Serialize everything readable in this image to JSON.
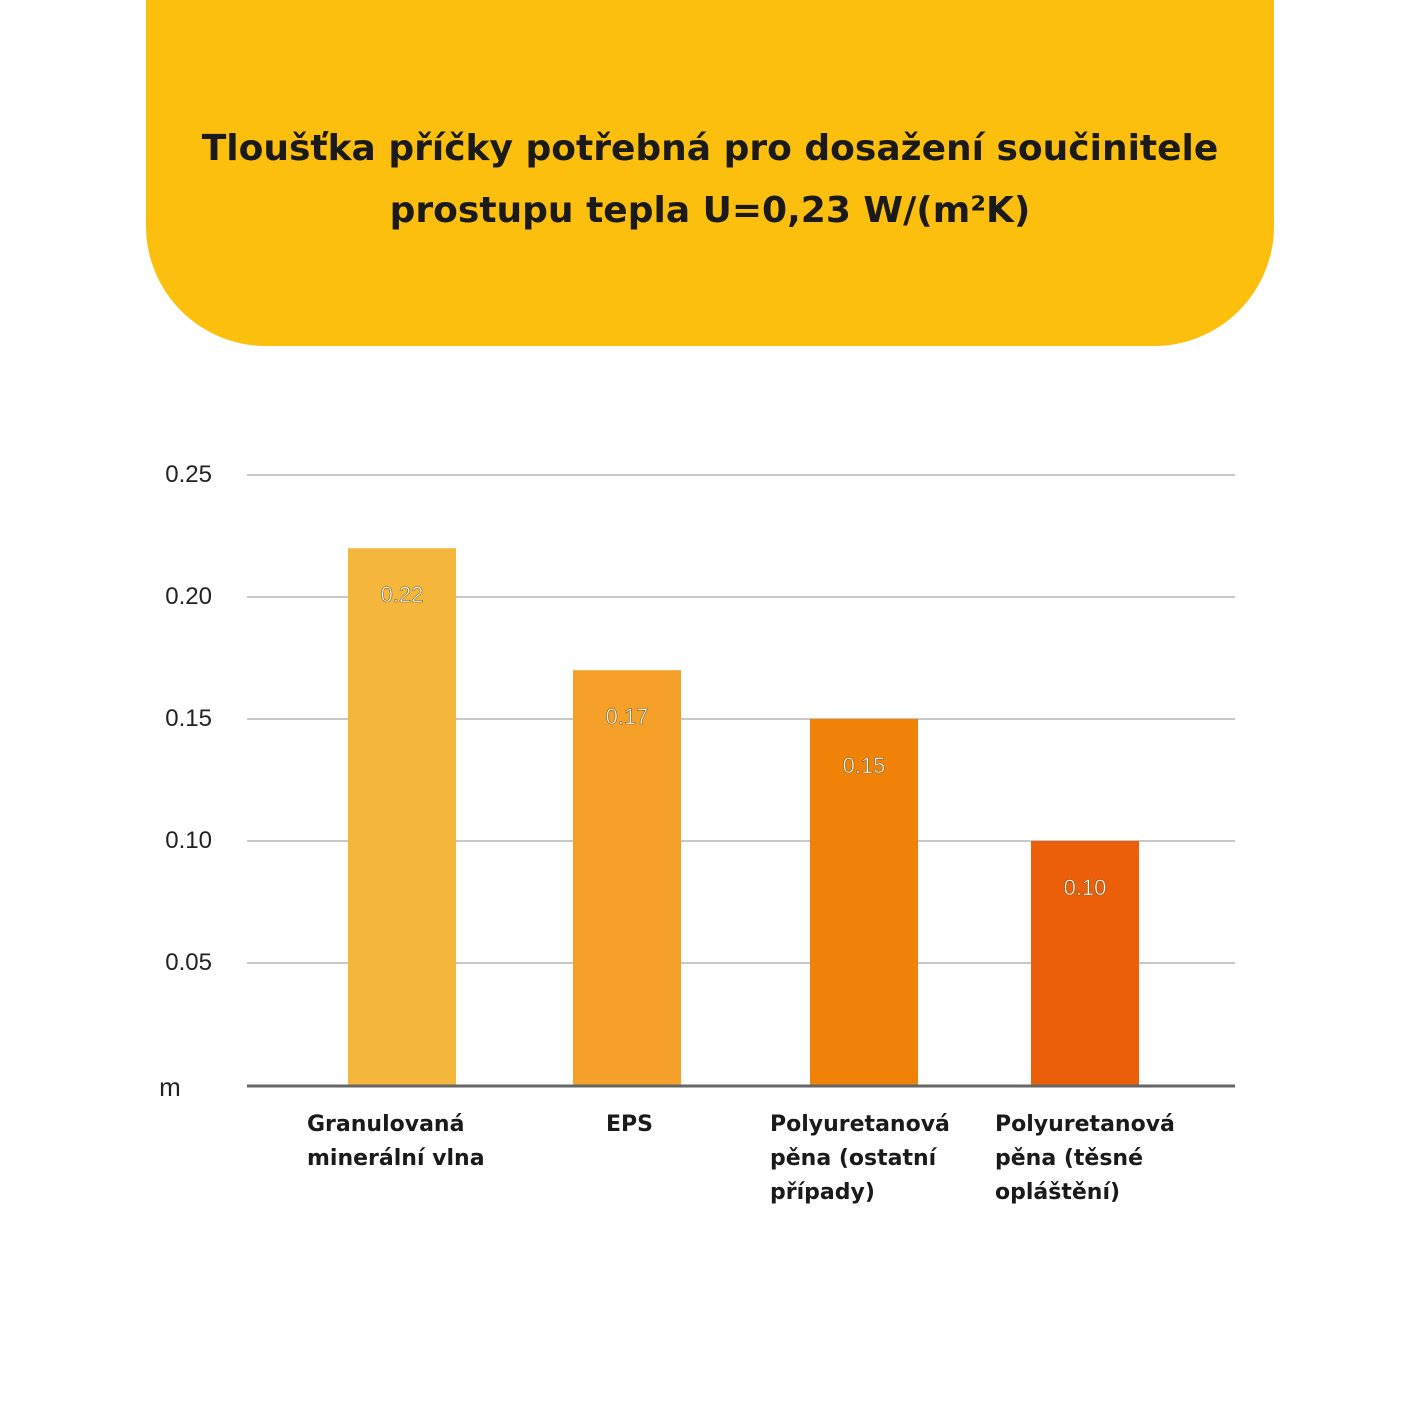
{
  "header": {
    "title_line1": "Tloušťka příčky potřebná pro dosažení součinitele",
    "title_line2": "prostupu tepla U=0,23 W/(m²K)"
  },
  "chart_data": {
    "type": "bar",
    "title": "Tloušťka příčky potřebná pro dosažení součinitele prostupu tepla U=0,23 W/(m²K)",
    "categories": [
      "Granulovaná\nminerální vlna",
      "EPS",
      "Polyuretanová\npěna (ostatní\npřípady)",
      "Polyuretanová\npěna (těsné\nopláštění)"
    ],
    "values": [
      0.22,
      0.17,
      0.15,
      0.1
    ],
    "value_labels": [
      "0.22",
      "0.17",
      "0.15",
      "0.10"
    ],
    "colors": [
      "#f5b73b",
      "#f5a028",
      "#f08307",
      "#eb5f0b"
    ],
    "ylabel": "m",
    "ylim": [
      0,
      0.25
    ],
    "yticks": [
      "0.05",
      "0.10",
      "0.15",
      "0.20",
      "0.25"
    ],
    "grid": true
  }
}
